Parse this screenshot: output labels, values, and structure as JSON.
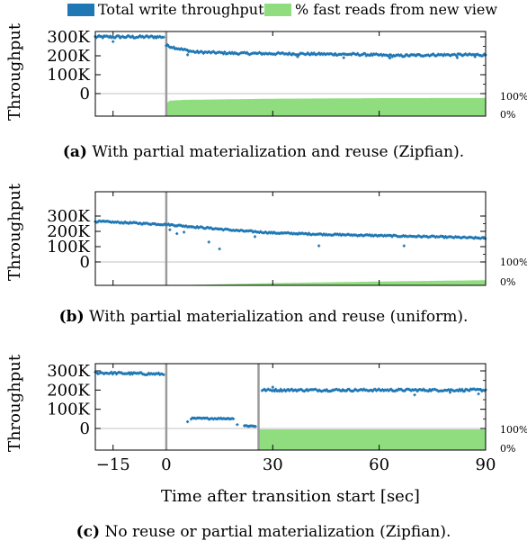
{
  "legend": {
    "items": [
      {
        "label": "Total write throughput",
        "color": "#1f77b4"
      },
      {
        "label": "% fast reads from new view",
        "color": "#90dd7f"
      }
    ]
  },
  "xaxis": {
    "label": "Time after transition start [sec]",
    "ticks": [
      -15,
      0,
      30,
      60,
      90
    ],
    "tick_labels": [
      "−15",
      "0",
      "30",
      "60",
      "90"
    ]
  },
  "chart_data": [
    {
      "type": "scatter",
      "caption_tag": "(a)",
      "caption": "With partial materialization and reuse (Zipfian).",
      "ylabel": "Throughput",
      "xlim": [
        -20,
        90
      ],
      "ylim": [
        0,
        350000
      ],
      "yticks": [
        0,
        100000,
        200000,
        300000
      ],
      "ytick_labels": [
        "0",
        "100K",
        "200K",
        "300K"
      ],
      "y2_tick_labels": [
        "100%",
        "0%"
      ],
      "transition_lines": [
        0
      ],
      "series": [
        {
          "name": "Total write throughput",
          "color": "#1f77b4",
          "segments": [
            {
              "x0": -20,
              "x1": -0.5,
              "y0": 300000,
              "y1": 300000,
              "noise": 7000
            }
          ],
          "trend": {
            "x0": 0,
            "x1": 90,
            "points": [
              [
                0,
                255000
              ],
              [
                3,
                240000
              ],
              [
                8,
                220000
              ],
              [
                20,
                213000
              ],
              [
                40,
                210000
              ],
              [
                55,
                207000
              ],
              [
                65,
                200000
              ],
              [
                75,
                205000
              ],
              [
                90,
                205000
              ]
            ],
            "noise": 6000
          },
          "outliers": [
            [
              -15,
              275000
            ],
            [
              6,
              205000
            ],
            [
              37,
              195000
            ],
            [
              50,
              190000
            ],
            [
              63,
              188000
            ],
            [
              82,
              190000
            ],
            [
              87,
              195000
            ]
          ]
        },
        {
          "name": "% fast reads from new view",
          "color": "#90dd7f",
          "fill_ramp": [
            [
              0,
              0.68
            ],
            [
              1,
              0.82
            ],
            [
              5,
              0.86
            ],
            [
              30,
              0.92
            ],
            [
              60,
              0.95
            ],
            [
              90,
              0.96
            ]
          ]
        }
      ]
    },
    {
      "type": "scatter",
      "caption_tag": "(b)",
      "caption": "With partial materialization and reuse (uniform).",
      "ylabel": "Throughput",
      "xlim": [
        -20,
        90
      ],
      "ylim": [
        0,
        350000
      ],
      "yticks": [
        0,
        100000,
        200000,
        300000
      ],
      "ytick_labels": [
        "0",
        "100K",
        "200K",
        "300K"
      ],
      "y2_tick_labels": [
        "100%",
        "0%"
      ],
      "transition_lines": [
        0
      ],
      "series": [
        {
          "name": "Total write throughput",
          "color": "#1f77b4",
          "segments": [],
          "trend": {
            "x0": -20,
            "x1": 90,
            "points": [
              [
                -20,
                265000
              ],
              [
                -10,
                255000
              ],
              [
                0,
                245000
              ],
              [
                10,
                225000
              ],
              [
                20,
                205000
              ],
              [
                30,
                190000
              ],
              [
                45,
                180000
              ],
              [
                60,
                172000
              ],
              [
                75,
                165000
              ],
              [
                90,
                155000
              ]
            ],
            "noise": 5000
          },
          "outliers": [
            [
              1,
              210000
            ],
            [
              3,
              185000
            ],
            [
              5,
              195000
            ],
            [
              12,
              130000
            ],
            [
              15,
              85000
            ],
            [
              25,
              165000
            ],
            [
              43,
              105000
            ],
            [
              67,
              105000
            ]
          ]
        },
        {
          "name": "% fast reads from new view",
          "color": "#90dd7f",
          "fill_ramp": [
            [
              0,
              0.0
            ],
            [
              10,
              0.03
            ],
            [
              30,
              0.1
            ],
            [
              60,
              0.17
            ],
            [
              90,
              0.23
            ]
          ]
        }
      ]
    },
    {
      "type": "scatter",
      "caption_tag": "(c)",
      "caption": "No reuse or partial materialization (Zipfian).",
      "ylabel": "Throughput",
      "xlim": [
        -20,
        90
      ],
      "ylim": [
        0,
        350000
      ],
      "yticks": [
        0,
        100000,
        200000,
        300000
      ],
      "ytick_labels": [
        "0",
        "100K",
        "200K",
        "300K"
      ],
      "y2_tick_labels": [
        "100%",
        "0%"
      ],
      "transition_lines": [
        0,
        26
      ],
      "series": [
        {
          "name": "Total write throughput",
          "color": "#1f77b4",
          "segments": [
            {
              "x0": -20,
              "x1": -0.5,
              "y0": 290000,
              "y1": 283000,
              "noise": 6000
            },
            {
              "x0": 7,
              "x1": 19,
              "y0": 52000,
              "y1": 52000,
              "noise": 3500
            },
            {
              "x0": 22,
              "x1": 25.5,
              "y0": 14000,
              "y1": 12000,
              "noise": 3000
            },
            {
              "x0": 27,
              "x1": 90,
              "y0": 200000,
              "y1": 200000,
              "noise": 6000
            }
          ],
          "trend": null,
          "outliers": [
            [
              6,
              35000
            ],
            [
              20,
              20000
            ],
            [
              30,
              215000
            ],
            [
              70,
              175000
            ],
            [
              80,
              188000
            ],
            [
              88,
              180000
            ]
          ]
        },
        {
          "name": "% fast reads from new view",
          "color": "#90dd7f",
          "fill_ramp": [
            [
              26,
              1.0
            ],
            [
              90,
              1.0
            ]
          ]
        }
      ]
    }
  ]
}
